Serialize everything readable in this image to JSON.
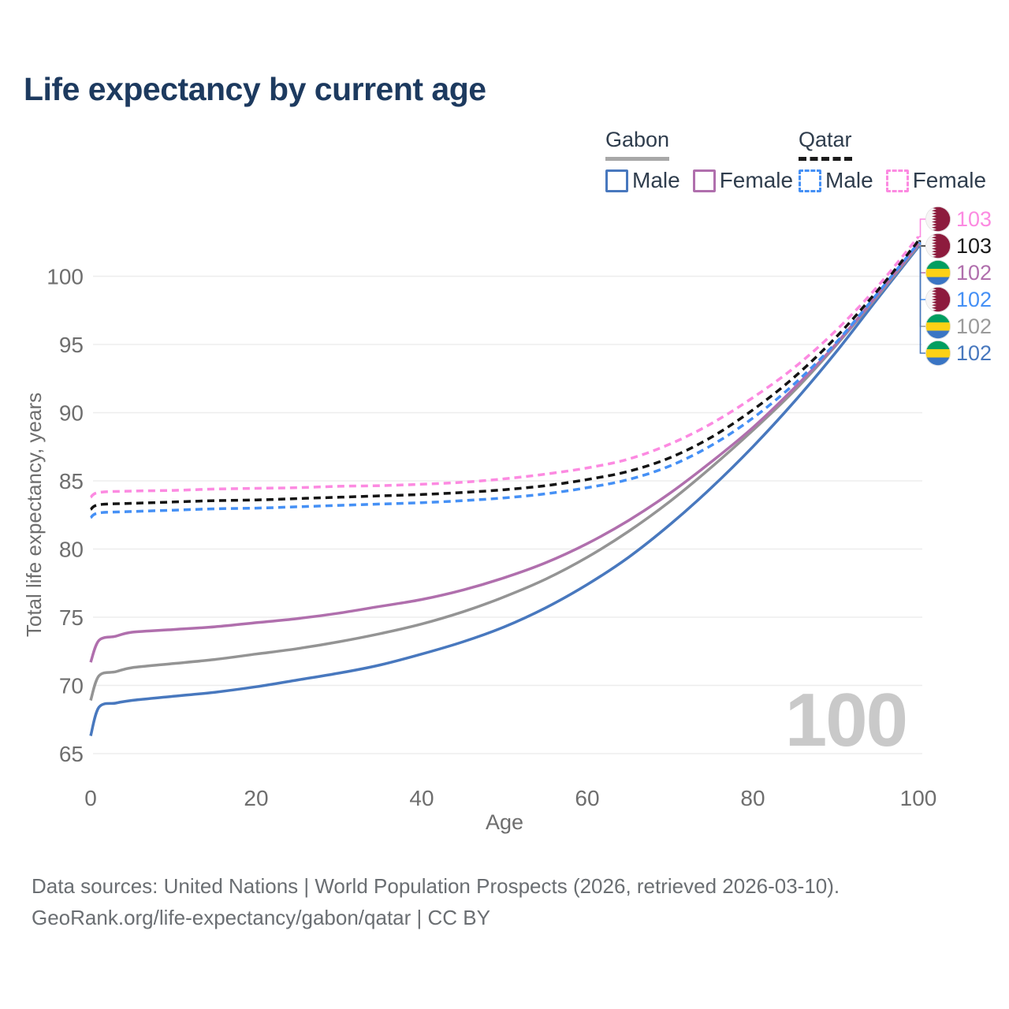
{
  "title": "Life expectancy by current age",
  "legend": {
    "groups": [
      {
        "id": "gabon",
        "label": "Gabon",
        "line_style": "solid",
        "header_line_color": "#a8a8a8",
        "items": [
          {
            "label": "Male",
            "color": "#4878be"
          },
          {
            "label": "Female",
            "color": "#b06fad"
          }
        ]
      },
      {
        "id": "qatar",
        "label": "Qatar",
        "line_style": "dashed",
        "header_line_color": "#1a1a1a",
        "items": [
          {
            "label": "Male",
            "color": "#4590f5"
          },
          {
            "label": "Female",
            "color": "#fc8ae1"
          }
        ]
      }
    ]
  },
  "chart_data": {
    "type": "line",
    "title": "Life expectancy by current age",
    "xlabel": "Age",
    "ylabel": "Total life expectancy, years",
    "x_ticks": [
      0,
      20,
      40,
      60,
      80,
      100
    ],
    "y_ticks": [
      65,
      70,
      75,
      80,
      85,
      90,
      95,
      100
    ],
    "xlim": [
      0,
      100
    ],
    "ylim": [
      64,
      104
    ],
    "grid": true,
    "watermark": "100",
    "series": [
      {
        "name": "Gabon Male",
        "country": "Gabon",
        "sex": "male",
        "color": "#4878be",
        "dashed": false,
        "points": [
          [
            0,
            66.3
          ],
          [
            1,
            68.4
          ],
          [
            3,
            68.7
          ],
          [
            5,
            68.9
          ],
          [
            10,
            69.2
          ],
          [
            15,
            69.5
          ],
          [
            20,
            69.9
          ],
          [
            25,
            70.4
          ],
          [
            30,
            70.9
          ],
          [
            35,
            71.5
          ],
          [
            40,
            72.3
          ],
          [
            45,
            73.2
          ],
          [
            50,
            74.3
          ],
          [
            55,
            75.7
          ],
          [
            60,
            77.4
          ],
          [
            65,
            79.4
          ],
          [
            70,
            81.8
          ],
          [
            75,
            84.5
          ],
          [
            80,
            87.5
          ],
          [
            85,
            90.8
          ],
          [
            90,
            94.4
          ],
          [
            95,
            98.3
          ],
          [
            100,
            102.15
          ]
        ]
      },
      {
        "name": "Gabon",
        "country": "Gabon",
        "sex": "both",
        "color": "#949494",
        "dashed": false,
        "points": [
          [
            0,
            68.9
          ],
          [
            1,
            70.7
          ],
          [
            3,
            71.0
          ],
          [
            5,
            71.3
          ],
          [
            10,
            71.6
          ],
          [
            15,
            71.9
          ],
          [
            20,
            72.3
          ],
          [
            25,
            72.7
          ],
          [
            30,
            73.2
          ],
          [
            35,
            73.8
          ],
          [
            40,
            74.5
          ],
          [
            45,
            75.4
          ],
          [
            50,
            76.5
          ],
          [
            55,
            77.8
          ],
          [
            60,
            79.4
          ],
          [
            65,
            81.3
          ],
          [
            70,
            83.5
          ],
          [
            75,
            86.0
          ],
          [
            80,
            88.7
          ],
          [
            85,
            91.6
          ],
          [
            90,
            94.9
          ],
          [
            95,
            98.5
          ],
          [
            100,
            102.25
          ]
        ]
      },
      {
        "name": "Gabon Female",
        "country": "Gabon",
        "sex": "female",
        "color": "#b06fad",
        "dashed": false,
        "points": [
          [
            0,
            71.7
          ],
          [
            1,
            73.3
          ],
          [
            3,
            73.6
          ],
          [
            5,
            73.9
          ],
          [
            10,
            74.1
          ],
          [
            15,
            74.3
          ],
          [
            20,
            74.6
          ],
          [
            25,
            74.9
          ],
          [
            30,
            75.3
          ],
          [
            35,
            75.8
          ],
          [
            40,
            76.3
          ],
          [
            45,
            77.0
          ],
          [
            50,
            77.9
          ],
          [
            55,
            79.0
          ],
          [
            60,
            80.4
          ],
          [
            65,
            82.1
          ],
          [
            70,
            84.1
          ],
          [
            75,
            86.4
          ],
          [
            80,
            88.9
          ],
          [
            85,
            91.8
          ],
          [
            90,
            95.0
          ],
          [
            95,
            98.6
          ],
          [
            100,
            102.35
          ]
        ]
      },
      {
        "name": "Qatar Male",
        "country": "Qatar",
        "sex": "male",
        "color": "#4590f5",
        "dashed": true,
        "points": [
          [
            0,
            82.3
          ],
          [
            1,
            82.65
          ],
          [
            5,
            82.75
          ],
          [
            10,
            82.85
          ],
          [
            15,
            82.95
          ],
          [
            20,
            83.0
          ],
          [
            25,
            83.1
          ],
          [
            30,
            83.2
          ],
          [
            35,
            83.3
          ],
          [
            40,
            83.4
          ],
          [
            45,
            83.55
          ],
          [
            50,
            83.75
          ],
          [
            55,
            84.05
          ],
          [
            60,
            84.5
          ],
          [
            65,
            85.1
          ],
          [
            70,
            86.1
          ],
          [
            75,
            87.6
          ],
          [
            80,
            89.6
          ],
          [
            85,
            92.1
          ],
          [
            90,
            95.1
          ],
          [
            95,
            98.7
          ],
          [
            100,
            102.45
          ]
        ]
      },
      {
        "name": "Qatar",
        "country": "Qatar",
        "sex": "both",
        "color": "#141414",
        "dashed": true,
        "points": [
          [
            0,
            82.9
          ],
          [
            1,
            83.25
          ],
          [
            5,
            83.35
          ],
          [
            10,
            83.45
          ],
          [
            15,
            83.55
          ],
          [
            20,
            83.6
          ],
          [
            25,
            83.7
          ],
          [
            30,
            83.8
          ],
          [
            35,
            83.9
          ],
          [
            40,
            84.0
          ],
          [
            45,
            84.15
          ],
          [
            50,
            84.35
          ],
          [
            55,
            84.65
          ],
          [
            60,
            85.1
          ],
          [
            65,
            85.7
          ],
          [
            70,
            86.7
          ],
          [
            75,
            88.2
          ],
          [
            80,
            90.2
          ],
          [
            85,
            92.6
          ],
          [
            90,
            95.5
          ],
          [
            95,
            98.9
          ],
          [
            100,
            102.6
          ]
        ]
      },
      {
        "name": "Qatar Female",
        "country": "Qatar",
        "sex": "female",
        "color": "#fc8ae1",
        "dashed": true,
        "points": [
          [
            0,
            83.8
          ],
          [
            1,
            84.15
          ],
          [
            5,
            84.25
          ],
          [
            10,
            84.3
          ],
          [
            15,
            84.4
          ],
          [
            20,
            84.45
          ],
          [
            25,
            84.5
          ],
          [
            30,
            84.6
          ],
          [
            35,
            84.65
          ],
          [
            40,
            84.75
          ],
          [
            45,
            84.9
          ],
          [
            50,
            85.15
          ],
          [
            55,
            85.5
          ],
          [
            60,
            85.95
          ],
          [
            65,
            86.6
          ],
          [
            70,
            87.7
          ],
          [
            75,
            89.2
          ],
          [
            80,
            91.1
          ],
          [
            85,
            93.3
          ],
          [
            90,
            96.0
          ],
          [
            95,
            99.2
          ],
          [
            100,
            102.9
          ]
        ]
      }
    ],
    "end_labels": [
      {
        "series": "Qatar Female",
        "flag": "qatar",
        "value": "103",
        "color": "#fc8ae1"
      },
      {
        "series": "Qatar",
        "flag": "qatar",
        "value": "103",
        "color": "#1a1a1a"
      },
      {
        "series": "Gabon Female",
        "flag": "gabon",
        "value": "102",
        "color": "#b06fad"
      },
      {
        "series": "Qatar Male",
        "flag": "qatar",
        "value": "102",
        "color": "#4590f5"
      },
      {
        "series": "Gabon",
        "flag": "gabon",
        "value": "102",
        "color": "#9a9a9a"
      },
      {
        "series": "Gabon Male",
        "flag": "gabon",
        "value": "102",
        "color": "#4878be"
      }
    ],
    "flag_colors": {
      "qatar_maroon": "#8d1b3d",
      "gabon_green": "#009e60",
      "gabon_yellow": "#fcd116",
      "gabon_blue": "#3a75c4"
    },
    "grid_color": "#ededed",
    "axis_text_color": "#6e6e6e"
  },
  "footer": {
    "line1": "Data sources: United Nations | World Population Prospects (2026, retrieved 2026-03-10).",
    "line2": "GeoRank.org/life-expectancy/gabon/qatar | CC BY"
  }
}
